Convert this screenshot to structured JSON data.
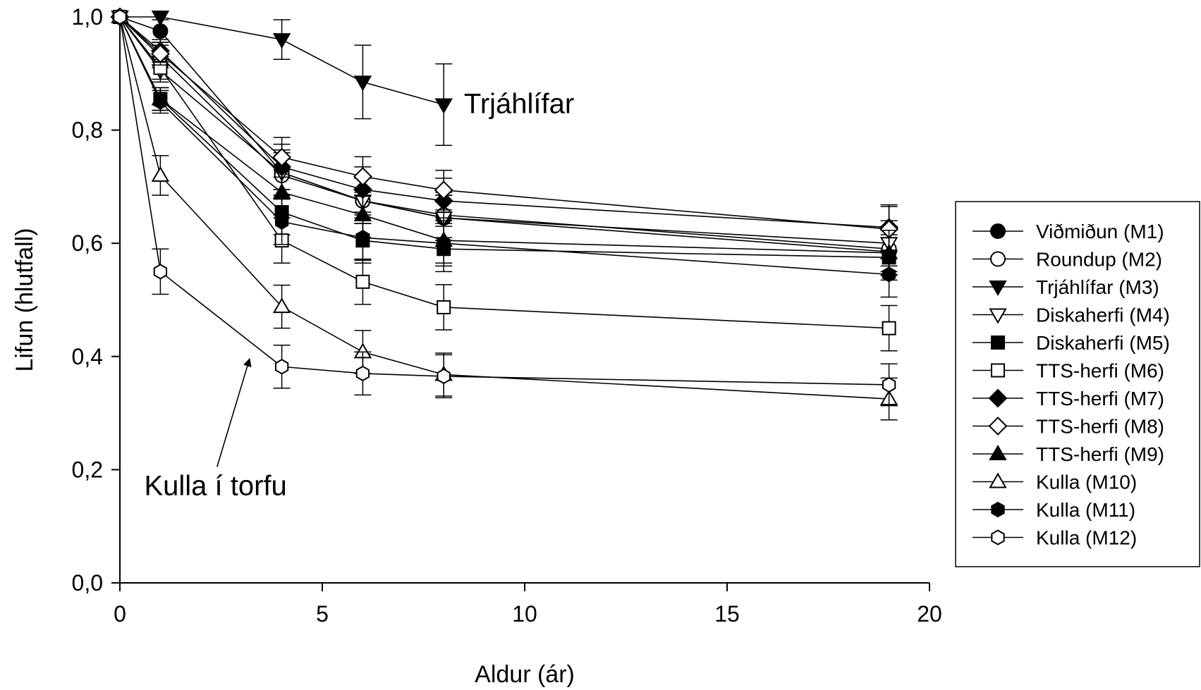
{
  "chart_data": {
    "type": "line",
    "xlabel": "Aldur (ár)",
    "ylabel": "Lifun (hlutfall)",
    "xlim": [
      0,
      20
    ],
    "ylim": [
      0,
      1
    ],
    "x_ticks": [
      0,
      5,
      10,
      15,
      20
    ],
    "x_tick_labels": [
      "0",
      "5",
      "10",
      "15",
      "20"
    ],
    "y_ticks": [
      0,
      0.2,
      0.4,
      0.6,
      0.8,
      1.0
    ],
    "y_tick_labels": [
      "0,0",
      "0,2",
      "0,4",
      "0,6",
      "0,8",
      "1,0"
    ],
    "grid": false,
    "legend_position": "right",
    "annotations": [
      {
        "text": "Trjáhlífar",
        "x": 8.5,
        "y": 0.83
      },
      {
        "text": "Kulla í torfu",
        "x": 0.6,
        "y": 0.155,
        "arrow_from": [
          2.4,
          0.205
        ],
        "arrow_to": [
          3.2,
          0.395
        ]
      }
    ],
    "series": [
      {
        "name": "Viðmiðun (M1)",
        "marker": "circle",
        "filled": true,
        "x": [
          0,
          1,
          4,
          6,
          8,
          19
        ],
        "y": [
          1.0,
          0.975,
          0.725,
          0.675,
          0.645,
          0.585
        ],
        "err": [
          0,
          0.02,
          0.04,
          0.04,
          0.04,
          0.04
        ]
      },
      {
        "name": "Roundup (M2)",
        "marker": "circle",
        "filled": false,
        "x": [
          0,
          1,
          4,
          6,
          8,
          19
        ],
        "y": [
          1.0,
          0.93,
          0.72,
          0.675,
          0.65,
          0.59
        ],
        "err": [
          0,
          0.02,
          0.04,
          0.04,
          0.04,
          0.04
        ]
      },
      {
        "name": "Trjáhlífar (M3)",
        "marker": "triangle-down",
        "filled": true,
        "x": [
          0,
          1,
          4,
          6,
          8
        ],
        "y": [
          1.0,
          1.0,
          0.96,
          0.885,
          0.845
        ],
        "err": [
          0,
          0,
          0.035,
          0.065,
          0.072
        ]
      },
      {
        "name": "Diskaherfi (M4)",
        "marker": "triangle-down",
        "filled": false,
        "x": [
          0,
          1,
          4,
          6,
          8,
          19
        ],
        "y": [
          1.0,
          0.905,
          0.725,
          0.675,
          0.645,
          0.6
        ],
        "err": [
          0,
          0.02,
          0.04,
          0.04,
          0.04,
          0.04
        ]
      },
      {
        "name": "Diskaherfi (M5)",
        "marker": "square",
        "filled": true,
        "x": [
          0,
          1,
          4,
          6,
          8,
          19
        ],
        "y": [
          1.0,
          0.855,
          0.655,
          0.605,
          0.59,
          0.575
        ],
        "err": [
          0,
          0.02,
          0.04,
          0.04,
          0.04,
          0.04
        ]
      },
      {
        "name": "TTS-herfi (M6)",
        "marker": "square",
        "filled": false,
        "x": [
          0,
          1,
          4,
          6,
          8,
          19
        ],
        "y": [
          1.0,
          0.91,
          0.605,
          0.532,
          0.487,
          0.45
        ],
        "err": [
          0,
          0.02,
          0.04,
          0.04,
          0.04,
          0.04
        ]
      },
      {
        "name": "TTS-herfi (M7)",
        "marker": "diamond",
        "filled": true,
        "x": [
          0,
          1,
          4,
          6,
          8,
          19
        ],
        "y": [
          1.0,
          0.94,
          0.735,
          0.695,
          0.675,
          0.628
        ],
        "err": [
          0,
          0.02,
          0.04,
          0.04,
          0.04,
          0.04
        ]
      },
      {
        "name": "TTS-herfi (M8)",
        "marker": "diamond",
        "filled": false,
        "x": [
          0,
          1,
          4,
          6,
          8,
          19
        ],
        "y": [
          1.0,
          0.935,
          0.752,
          0.718,
          0.694,
          0.625
        ],
        "err": [
          0,
          0.02,
          0.035,
          0.035,
          0.035,
          0.04
        ]
      },
      {
        "name": "TTS-herfi (M9)",
        "marker": "triangle-up",
        "filled": true,
        "x": [
          0,
          1,
          4,
          6,
          8,
          19
        ],
        "y": [
          1.0,
          0.855,
          0.69,
          0.65,
          0.605,
          0.583
        ],
        "err": [
          0,
          0.02,
          0.04,
          0.04,
          0.04,
          0.04
        ]
      },
      {
        "name": "Kulla (M10)",
        "marker": "triangle-up",
        "filled": false,
        "x": [
          0,
          1,
          4,
          6,
          8,
          19
        ],
        "y": [
          1.0,
          0.72,
          0.488,
          0.408,
          0.368,
          0.325
        ],
        "err": [
          0,
          0.035,
          0.038,
          0.038,
          0.038,
          0.037
        ]
      },
      {
        "name": "Kulla (M11)",
        "marker": "hexagon",
        "filled": true,
        "x": [
          0,
          1,
          4,
          6,
          8,
          19
        ],
        "y": [
          1.0,
          0.85,
          0.638,
          0.61,
          0.6,
          0.545
        ],
        "err": [
          0,
          0.02,
          0.04,
          0.04,
          0.04,
          0.04
        ]
      },
      {
        "name": "Kulla (M12)",
        "marker": "hexagon",
        "filled": false,
        "x": [
          0,
          1,
          4,
          6,
          8,
          19
        ],
        "y": [
          1.0,
          0.55,
          0.382,
          0.37,
          0.365,
          0.35
        ],
        "err": [
          0,
          0.04,
          0.038,
          0.038,
          0.038,
          0.037
        ]
      }
    ]
  }
}
